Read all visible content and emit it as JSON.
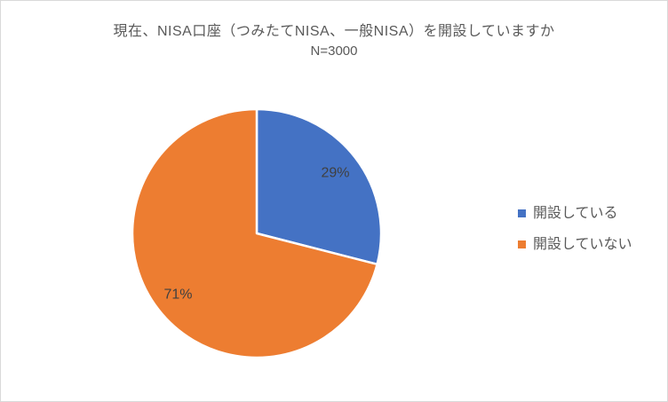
{
  "chart_data": {
    "type": "pie",
    "title": "現在、NISA口座（つみたてNISA、一般NISA）を開設していますか",
    "subtitle": "N=3000",
    "categories": [
      "開設している",
      "開設していない"
    ],
    "values": [
      29,
      71
    ],
    "labels": [
      "29%",
      "71%"
    ],
    "unit": "%",
    "colors": [
      "#4472C4",
      "#ED7D31"
    ],
    "legend_position": "right",
    "start_angle_deg": -90,
    "direction": "clockwise",
    "grid": false
  },
  "legend": {
    "items": [
      {
        "label": "開設している",
        "color": "#4472C4"
      },
      {
        "label": "開設していない",
        "color": "#ED7D31"
      }
    ]
  },
  "style": {
    "background": "#FFFFFF",
    "frame_border_color": "#D9D9D9",
    "title_color": "#595959",
    "data_label_color": "#404040",
    "slice_gap_color": "#FFFFFF"
  }
}
